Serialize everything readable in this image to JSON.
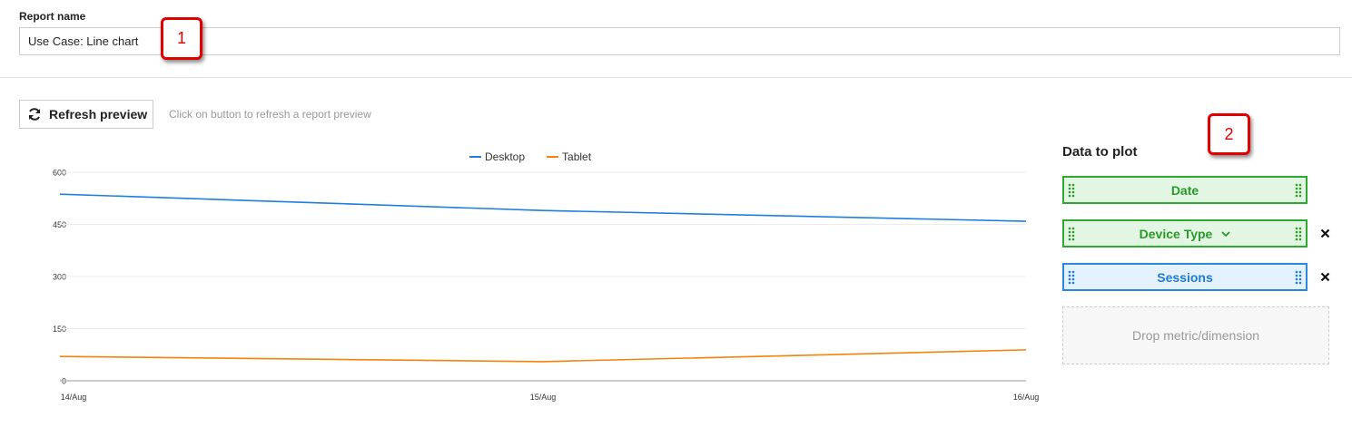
{
  "report_name_label": "Report name",
  "report_name_value": "Use Case: Line chart",
  "callouts": [
    "1",
    "2"
  ],
  "refresh_button": "Refresh preview",
  "refresh_hint": "Click on button to refresh a report preview",
  "panel": {
    "title": "Data to plot",
    "items": [
      "Date",
      "Device Type",
      "Sessions"
    ],
    "drop_zone": "Drop metric/dimension"
  },
  "chart_data": {
    "type": "line",
    "categories": [
      "14/Aug",
      "15/Aug",
      "16/Aug"
    ],
    "series": [
      {
        "name": "Desktop",
        "color": "#1e7fe0",
        "values": [
          537,
          490,
          459
        ]
      },
      {
        "name": "Tablet",
        "color": "#f5820d",
        "values": [
          70,
          55,
          89
        ]
      }
    ],
    "ylim": [
      0,
      600
    ],
    "yticks": [
      0,
      150,
      300,
      450,
      600
    ],
    "grid": true,
    "legend": "top"
  }
}
